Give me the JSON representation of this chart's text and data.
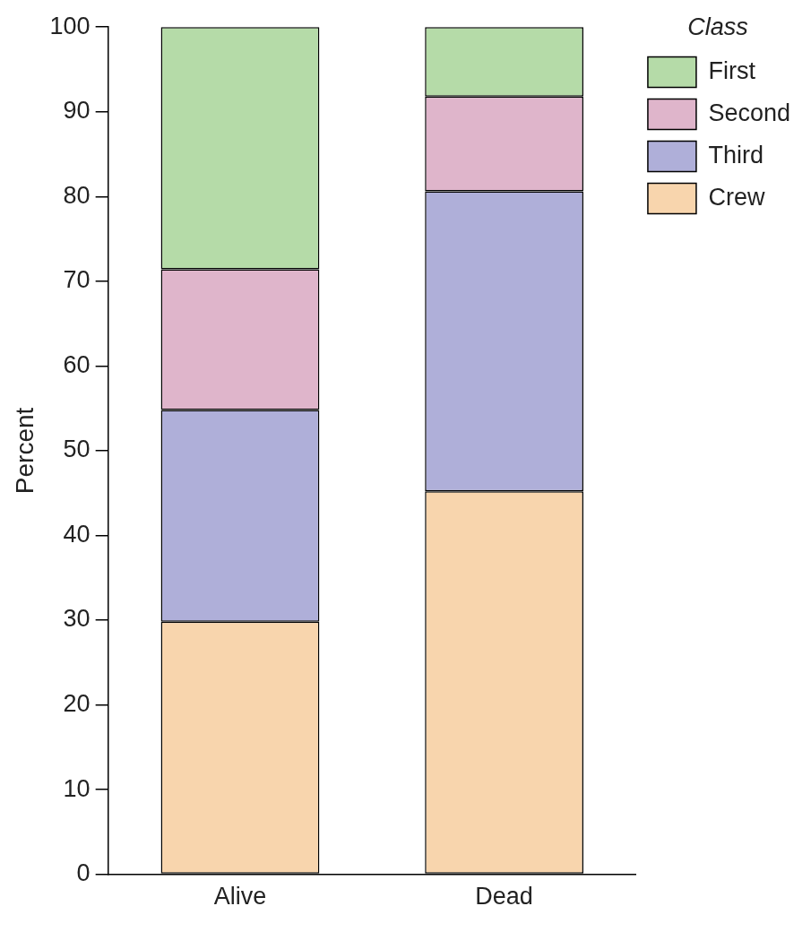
{
  "chart_data": {
    "type": "bar",
    "stacked": true,
    "ylabel": "Percent",
    "legend_title": "Class",
    "legend": "top right",
    "categories": [
      "Alive",
      "Dead"
    ],
    "series": [
      {
        "name": "Crew",
        "color": "#f8d5ad",
        "values": [
          29.8,
          45.2
        ]
      },
      {
        "name": "Third",
        "color": "#afafd9",
        "values": [
          25.0,
          35.4
        ]
      },
      {
        "name": "Second",
        "color": "#dfb5cb",
        "values": [
          16.6,
          11.2
        ]
      },
      {
        "name": "First",
        "color": "#b5dba8",
        "values": [
          28.6,
          8.2
        ]
      }
    ],
    "ylim": [
      0,
      100
    ],
    "yticks": [
      0,
      10,
      20,
      30,
      40,
      50,
      60,
      70,
      80,
      90,
      100
    ],
    "grid": false
  }
}
